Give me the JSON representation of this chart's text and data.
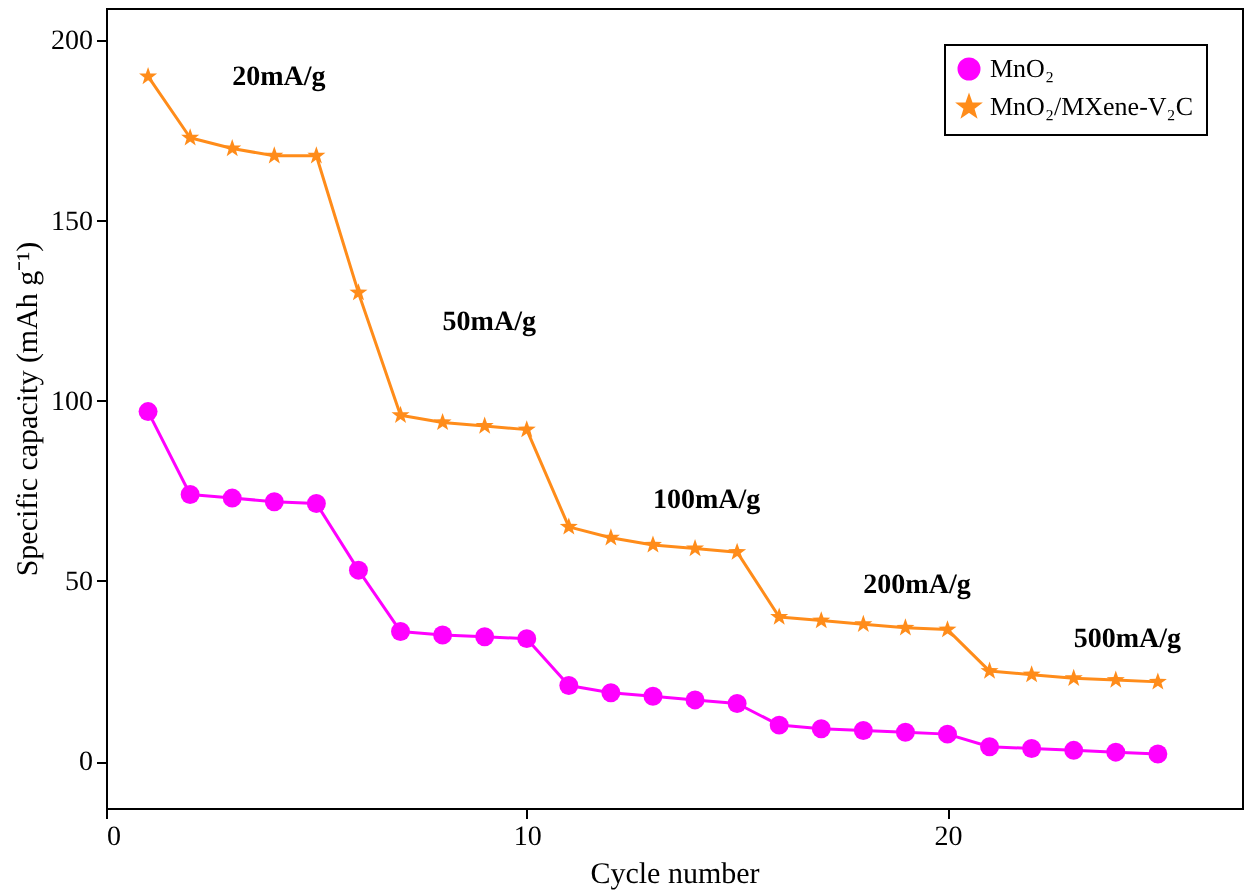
{
  "chart_data": {
    "type": "line",
    "xlabel": "Cycle number",
    "ylabel": "Specific capacity (mAh g⁻¹)",
    "x": [
      1,
      2,
      3,
      4,
      5,
      6,
      7,
      8,
      9,
      10,
      11,
      12,
      13,
      14,
      15,
      16,
      17,
      18,
      19,
      20,
      21,
      22,
      23,
      24,
      25
    ],
    "series": [
      {
        "name": "MnO₂",
        "color": "#ff00ff",
        "marker": "circle",
        "values": [
          97,
          74,
          73,
          72,
          71.5,
          53,
          36,
          35,
          34.5,
          34,
          21,
          19,
          18,
          17,
          16,
          10,
          9,
          8.5,
          8,
          7.5,
          4,
          3.5,
          3,
          2.5,
          2
        ]
      },
      {
        "name": "MnO₂/MXene-V₂C",
        "color": "#ff8c1a",
        "marker": "star",
        "values": [
          190,
          173,
          170,
          168,
          168,
          130,
          96,
          94,
          93,
          92,
          65,
          62,
          60,
          59,
          58,
          40,
          39,
          38,
          37,
          36.5,
          25,
          24,
          23,
          22.5,
          22
        ]
      }
    ],
    "xlim": [
      0,
      27
    ],
    "xticks": [
      0,
      10,
      20
    ],
    "ylim": [
      -13,
      209
    ],
    "yticks": [
      0,
      50,
      100,
      150,
      200
    ],
    "grid": false,
    "legend": "top right",
    "line_style": "solid",
    "annotations": [
      "20mA/g",
      "50mA/g",
      "100mA/g",
      "200mA/g",
      "500mA/g"
    ]
  }
}
